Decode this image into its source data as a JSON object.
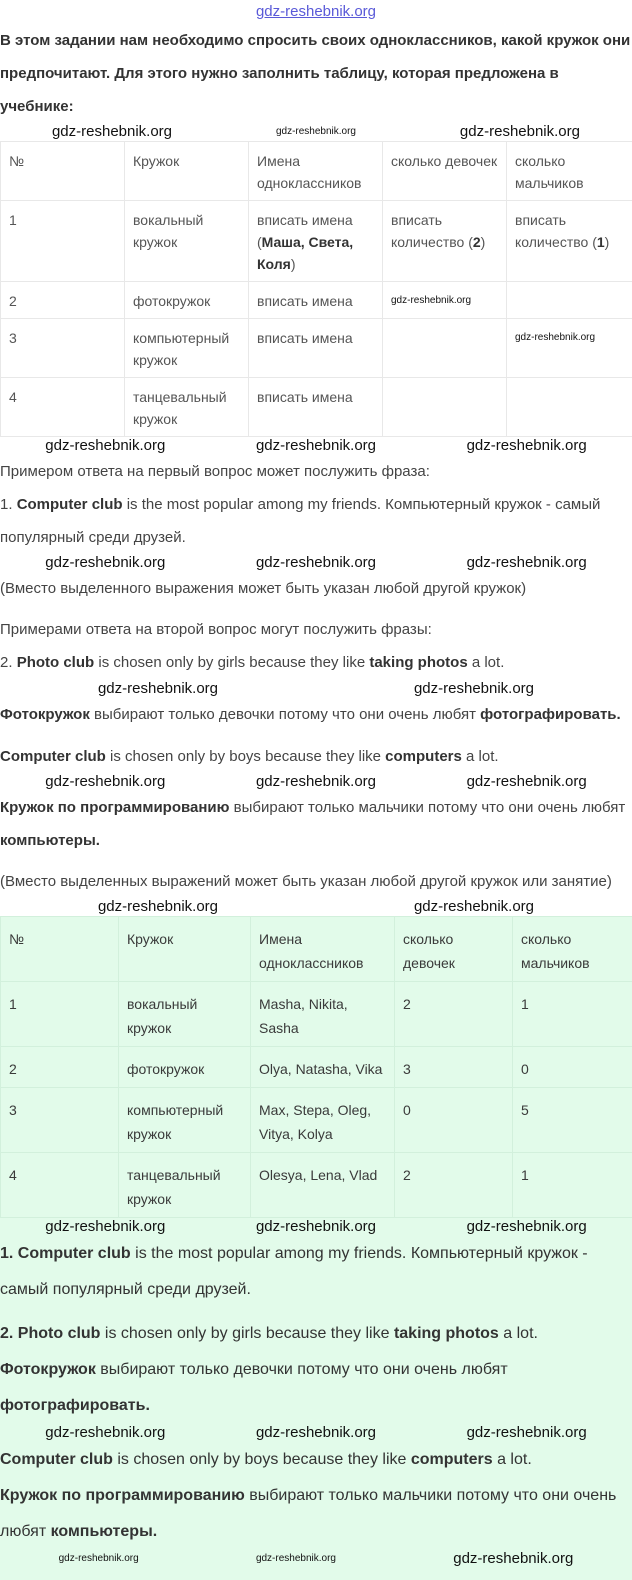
{
  "site_link": "gdz-reshebnik.org",
  "watermark": "gdz-reshebnik.org",
  "colors": {
    "answer_background": "#e2fbea",
    "link": "#5a5ad8"
  },
  "intro": "В этом задании нам необходимо спросить своих одноклассников, какой кружок они предпочитают. Для этого нужно заполнить таблицу, которая предложена в учебнике:",
  "table1": {
    "headers": [
      "№",
      "Кружок",
      "Имена одноклассников",
      "сколько девочек",
      "сколько мальчиков"
    ],
    "rows": [
      {
        "n": "1",
        "club": "вокальный кружок",
        "names_pre": "вписать имена (",
        "names_bold": "Маша, Света, Коля",
        "names_post": ")",
        "girls_pre": "вписать количество (",
        "girls_bold": "2",
        "girls_post": ")",
        "boys_pre": "вписать количество (",
        "boys_bold": "1",
        "boys_post": ")"
      },
      {
        "n": "2",
        "club": "фотокружок",
        "names": "вписать имена"
      },
      {
        "n": "3",
        "club": "компьютерный кружок",
        "names": "вписать имена"
      },
      {
        "n": "4",
        "club": "танцевальный кружок",
        "names": "вписать имена"
      }
    ]
  },
  "text": {
    "q1_intro": "Примером ответа на первый вопрос может послужить фраза:",
    "q1_num": "1. ",
    "q1_bold": "Computer club",
    "q1_rest": " is the most popular among my friends. Компьютерный кружок - самый популярный среди друзей.",
    "q1_note": "(Вместо выделенного выражения может быть указан любой другой кружок)",
    "q2_intro": "Примерами ответа на второй вопрос могут послужить фразы:",
    "q2_num": "2. ",
    "q2_bold1": "Photo club",
    "q2_mid1": " is chosen only by girls because they like ",
    "q2_bold2": "taking photos",
    "q2_end1": " a lot.",
    "q2_ru_bold1": "Фотокружок",
    "q2_ru_mid": " выбирают только девочки потому что они очень любят ",
    "q2_ru_bold2": "фотографировать.",
    "q3_bold1": "Computer club",
    "q3_mid1": " is chosen only by boys because they like ",
    "q3_bold2": "computers",
    "q3_end1": " a lot. ",
    "q3_ru_bold1": "Кружок по программированию",
    "q3_ru_mid": " выбирают только мальчики потому что они очень любят ",
    "q3_ru_bold2": "компьютеры.",
    "q3_note": "(Вместо выделенных выражений может быть указан любой другой кружок или занятие)"
  },
  "table2": {
    "headers": [
      "№",
      "Кружок",
      "Имена одноклассников",
      "сколько девочек",
      "сколько мальчиков"
    ],
    "rows": [
      {
        "n": "1",
        "club": "вокальный кружок",
        "names": "Masha, Nikita, Sasha",
        "girls": "2",
        "boys": "1"
      },
      {
        "n": "2",
        "club": "фотокружок",
        "names": "Olya, Natasha, Vika",
        "girls": "3",
        "boys": "0"
      },
      {
        "n": "3",
        "club": "компьютерный кружок",
        "names": "Max, Stepa, Oleg, Vitya, Kolya",
        "girls": "0",
        "boys": "5"
      },
      {
        "n": "4",
        "club": "танцевальный кружок",
        "names": "Olesya, Lena, Vlad",
        "girls": "2",
        "boys": "1"
      }
    ]
  },
  "answer": {
    "a1_num": "1. ",
    "a1_bold": "Computer club",
    "a1_rest": " is the most popular among my friends. Компьютерный кружок - самый популярный среди друзей.",
    "a2_num": "2. ",
    "a2_bold1": "Photo club",
    "a2_mid": " is chosen only by girls because they like ",
    "a2_bold2": "taking photos",
    "a2_end": " a lot.",
    "a2_ru_bold1": "Фотокружок",
    "a2_ru_mid": " выбирают только девочки потому что они очень любят ",
    "a2_ru_bold2": "фотографировать.",
    "a3_bold1": "Computer club",
    "a3_mid": " is chosen only by boys because they like ",
    "a3_bold2": "computers",
    "a3_end": " a lot.",
    "a3_ru_bold1": "Кружок по программированию",
    "a3_ru_mid": " выбирают только мальчики потому что они очень любят ",
    "a3_ru_bold2": "компьютеры."
  }
}
